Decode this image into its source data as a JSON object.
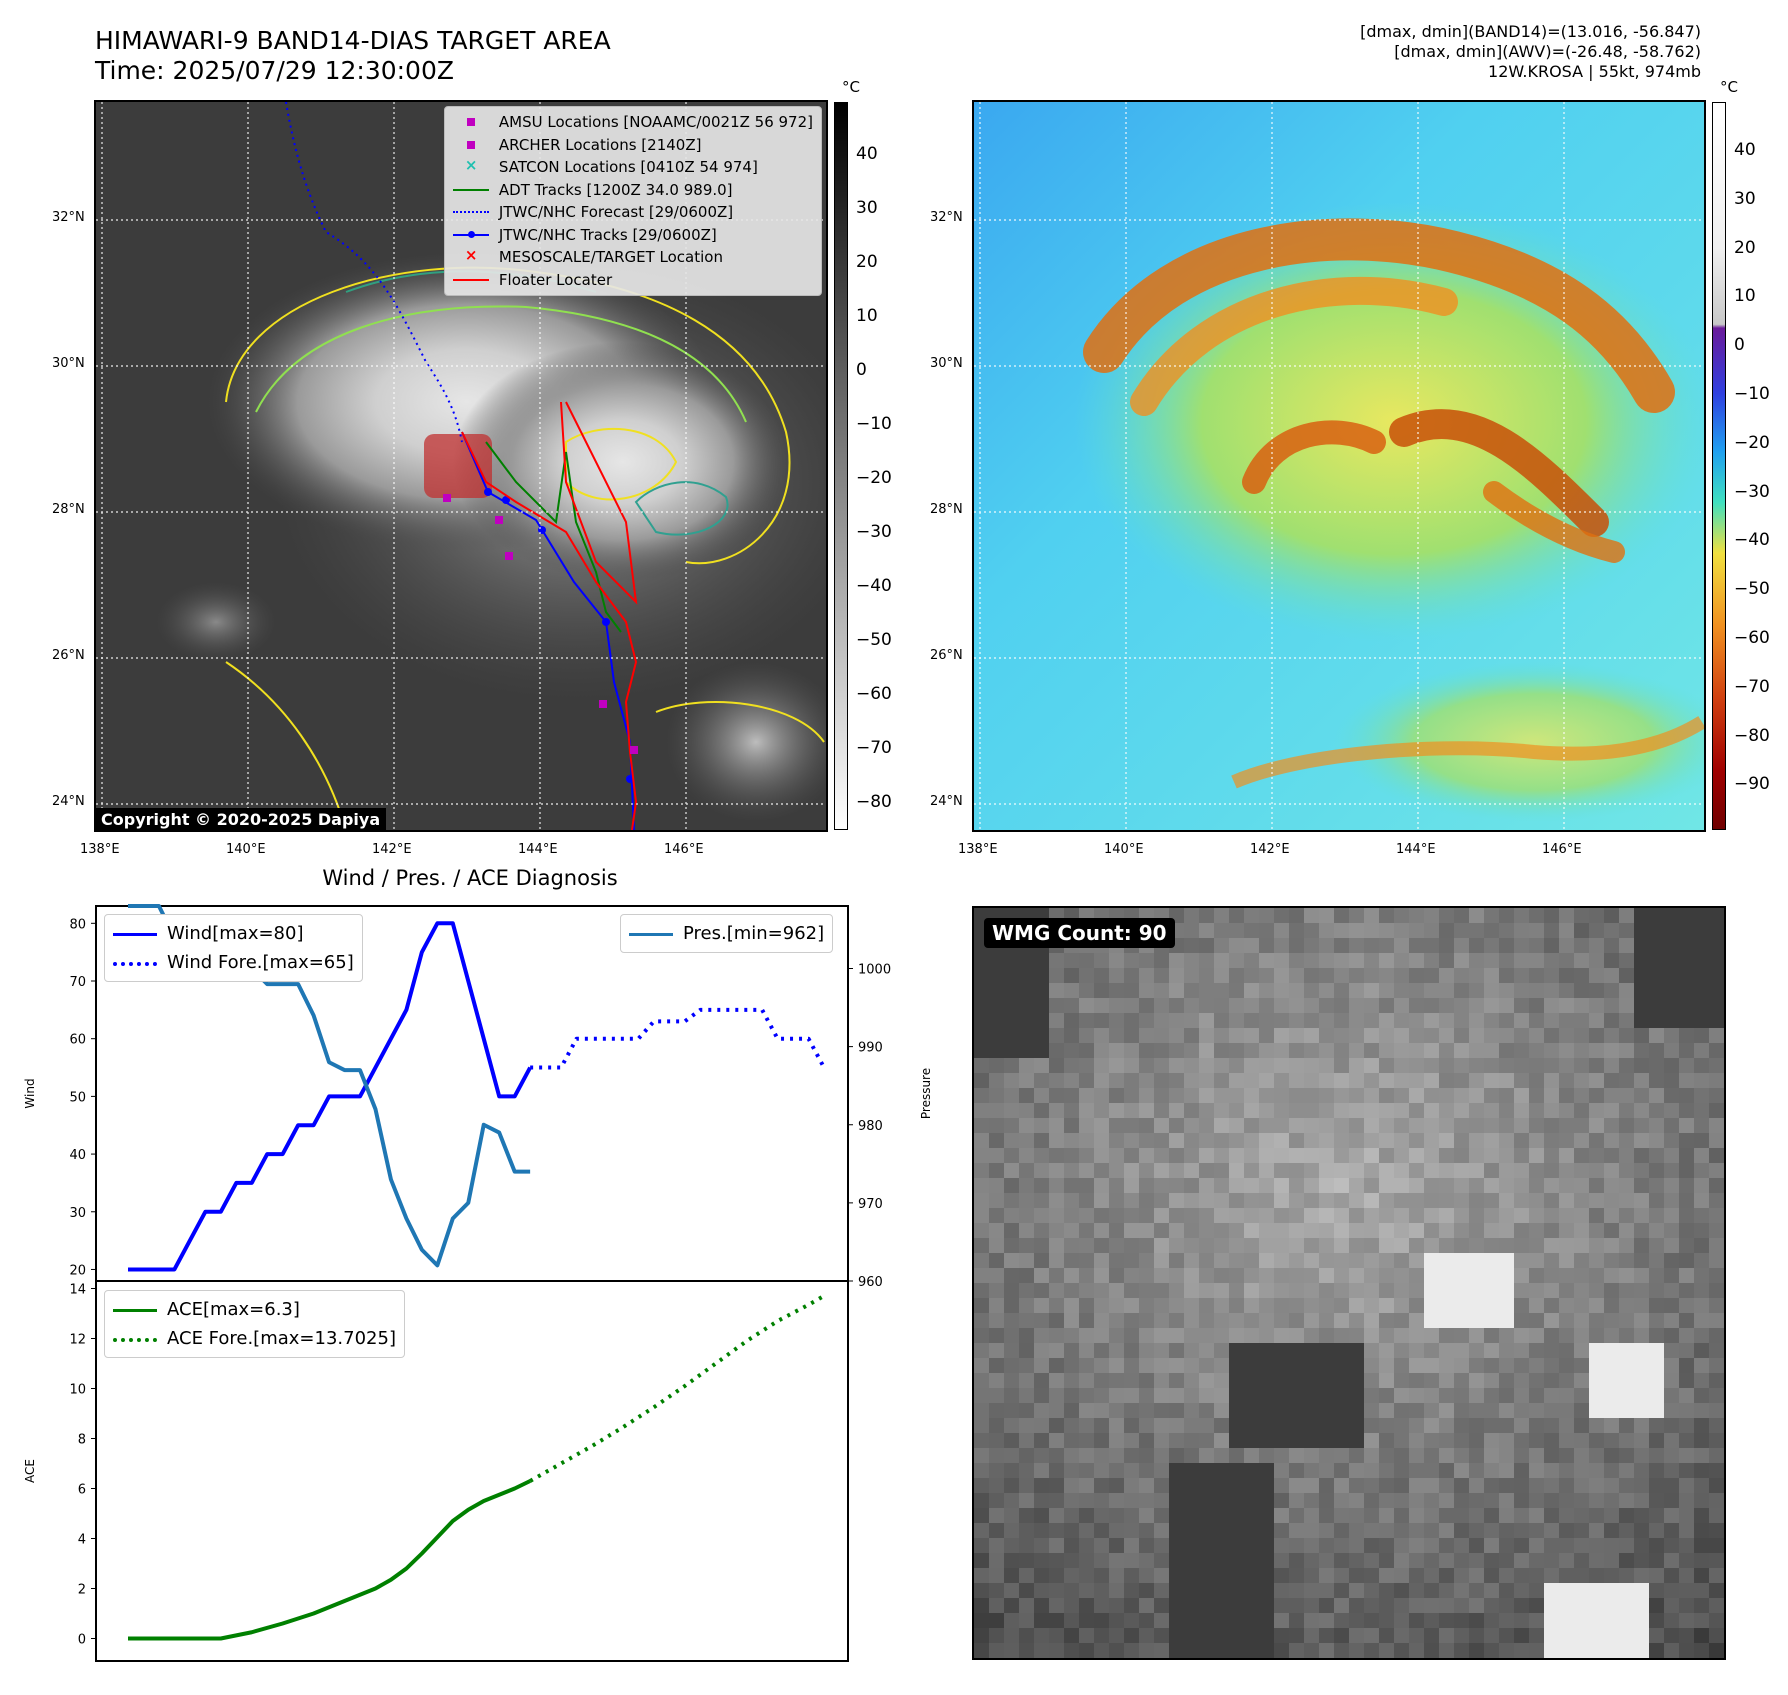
{
  "header": {
    "title_line1": "HIMAWARI-9 BAND14-DIAS TARGET AREA",
    "title_line2": "Time: 2025/07/29 12:30:00Z",
    "right_line1": "[dmax, dmin](BAND14)=(13.016, -56.847)",
    "right_line2": "[dmax, dmin](AWV)=(-26.48, -58.762)",
    "right_line3": "12W.KROSA | 55kt, 974mb"
  },
  "map_axes": {
    "lat_labels": [
      "32°N",
      "30°N",
      "28°N",
      "26°N",
      "24°N"
    ],
    "lon_labels": [
      "138°E",
      "140°E",
      "142°E",
      "144°E",
      "146°E"
    ]
  },
  "ir_map": {
    "legend": [
      {
        "label": "AMSU Locations [NOAAMC/0021Z 56 972]",
        "color": "#c000c0",
        "marker": "square"
      },
      {
        "label": "ARCHER Locations [2140Z]",
        "color": "#c000c0",
        "marker": "square"
      },
      {
        "label": "SATCON Locations [0410Z 54 974]",
        "color": "#20c0b0",
        "marker": "x"
      },
      {
        "label": "ADT Tracks [1200Z 34.0 989.0]",
        "color": "#008000",
        "marker": "line"
      },
      {
        "label": "JTWC/NHC Forecast [29/0600Z]",
        "color": "#0000ff",
        "marker": "dotted"
      },
      {
        "label": "JTWC/NHC Tracks [29/0600Z]",
        "color": "#0000ff",
        "marker": "line-dot"
      },
      {
        "label": "MESOSCALE/TARGET Location",
        "color": "#ff0000",
        "marker": "x"
      },
      {
        "label": "Floater Locater",
        "color": "#ff0000",
        "marker": "line"
      }
    ],
    "copyright": "Copyright © 2020-2025 Dapiya",
    "colorbar_unit": "°C",
    "colorbar_ticks": [
      "40",
      "30",
      "20",
      "10",
      "0",
      "−10",
      "−20",
      "−30",
      "−40",
      "−50",
      "−60",
      "−70",
      "−80"
    ]
  },
  "awv_map": {
    "colorbar_unit": "°C",
    "colorbar_ticks": [
      "40",
      "30",
      "20",
      "10",
      "0",
      "−10",
      "−20",
      "−30",
      "−40",
      "−50",
      "−60",
      "−70",
      "−80",
      "−90"
    ]
  },
  "wmg": {
    "label": "WMG Count: 90"
  },
  "chart_data": [
    {
      "type": "line",
      "title": "Wind / Pres. / ACE Diagnosis",
      "ylabel": "Wind",
      "ylabel_right": "Pressure",
      "ylim": [
        18,
        83
      ],
      "ylim_right": [
        960,
        1008
      ],
      "yticks": [
        20,
        30,
        40,
        50,
        60,
        70,
        80
      ],
      "yticks_right": [
        960,
        970,
        980,
        990,
        1000
      ],
      "legend_left": [
        "Wind[max=80]",
        "Wind Fore.[max=65]"
      ],
      "legend_right": [
        "Pres.[min=962]"
      ],
      "x": [
        0,
        1,
        2,
        3,
        4,
        5,
        6,
        7,
        8,
        9,
        10,
        11,
        12,
        13,
        14,
        15,
        16,
        17,
        18,
        19,
        20,
        21,
        22,
        23,
        24,
        25,
        26,
        27,
        28,
        29,
        30,
        31,
        32,
        33,
        34,
        35,
        36,
        37,
        38,
        39,
        40,
        41,
        42,
        43,
        44,
        45
      ],
      "series": [
        {
          "name": "Wind[max=80]",
          "color": "#0000ff",
          "style": "solid",
          "x": [
            0,
            1,
            2,
            3,
            4,
            5,
            6,
            7,
            8,
            9,
            10,
            11,
            12,
            13,
            14,
            15,
            16,
            17,
            18,
            19,
            20,
            21,
            22,
            23,
            24,
            25,
            26
          ],
          "values": [
            20,
            20,
            20,
            20,
            25,
            30,
            30,
            35,
            35,
            40,
            40,
            45,
            45,
            50,
            50,
            50,
            55,
            60,
            65,
            75,
            80,
            80,
            70,
            60,
            50,
            50,
            55
          ]
        },
        {
          "name": "Wind Fore.[max=65]",
          "color": "#0000ff",
          "style": "dotted",
          "x": [
            26,
            27,
            28,
            29,
            30,
            31,
            32,
            33,
            34,
            35,
            36,
            37,
            38,
            39,
            40,
            41,
            42,
            43,
            44,
            45
          ],
          "values": [
            55,
            55,
            55,
            60,
            60,
            60,
            60,
            60,
            63,
            63,
            63,
            65,
            65,
            65,
            65,
            65,
            60,
            60,
            60,
            55
          ]
        },
        {
          "name": "Pres.[min=962]",
          "color": "#1f77b4",
          "style": "solid",
          "axis": "right",
          "x": [
            0,
            1,
            2,
            3,
            4,
            5,
            6,
            7,
            8,
            9,
            10,
            11,
            12,
            13,
            14,
            15,
            16,
            17,
            18,
            19,
            20,
            21,
            22,
            23,
            24,
            25,
            26
          ],
          "values": [
            1008,
            1008,
            1008,
            1004,
            1004,
            1003,
            1003,
            1000,
            1000,
            998,
            998,
            998,
            994,
            988,
            987,
            987,
            982,
            973,
            968,
            964,
            962,
            968,
            970,
            980,
            979,
            974,
            974
          ]
        }
      ]
    },
    {
      "type": "line",
      "ylabel": "ACE",
      "ylim": [
        -0.9,
        14.3
      ],
      "yticks": [
        0,
        2,
        4,
        6,
        8,
        10,
        12,
        14
      ],
      "legend": [
        "ACE[max=6.3]",
        "ACE Fore.[max=13.7025]"
      ],
      "series": [
        {
          "name": "ACE[max=6.3]",
          "color": "#008000",
          "style": "solid",
          "x": [
            0,
            2,
            4,
            6,
            8,
            10,
            12,
            14,
            16,
            17,
            18,
            19,
            20,
            21,
            22,
            23,
            24,
            25,
            26
          ],
          "values": [
            0,
            0,
            0,
            0,
            0.25,
            0.6,
            1.0,
            1.5,
            2.0,
            2.35,
            2.8,
            3.4,
            4.05,
            4.7,
            5.15,
            5.5,
            5.75,
            6.0,
            6.3
          ]
        },
        {
          "name": "ACE Fore.[max=13.7025]",
          "color": "#008000",
          "style": "dotted",
          "x": [
            26,
            28,
            30,
            32,
            34,
            36,
            38,
            40,
            42,
            44,
            45
          ],
          "values": [
            6.3,
            7.0,
            7.7,
            8.45,
            9.25,
            10.1,
            11.0,
            11.9,
            12.7,
            13.35,
            13.7025
          ]
        }
      ]
    }
  ]
}
